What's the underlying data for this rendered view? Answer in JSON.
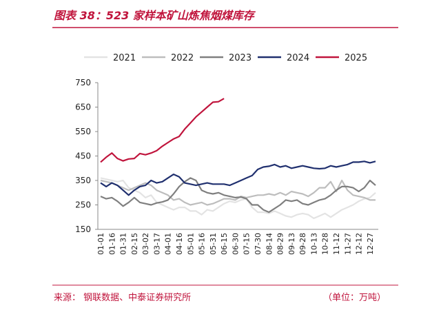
{
  "chart_data": {
    "type": "line",
    "title": "图表 38：523 家样本矿山炼焦烟煤库存",
    "source": "来源：   钢联数据、中泰证券研究所",
    "unit": "（单位：万吨）",
    "categories": [
      "01-01",
      null,
      "01-16",
      null,
      "01-31",
      null,
      "02-15",
      null,
      "03-02",
      null,
      "03-17",
      null,
      "04-01",
      null,
      "04-16",
      null,
      "05-01",
      null,
      "05-16",
      null,
      "05-31",
      null,
      "06-15",
      null,
      "06-30",
      null,
      "07-15",
      null,
      "07-30",
      null,
      "08-14",
      null,
      "08-29",
      null,
      "09-13",
      null,
      "09-28",
      null,
      "10-13",
      null,
      "10-28",
      null,
      "11-12",
      null,
      "11-27",
      null,
      "12-12",
      null,
      "12-27",
      null
    ],
    "ylim": [
      150,
      750
    ],
    "yticks": [
      150,
      250,
      350,
      450,
      550,
      650,
      750
    ],
    "legend": "top",
    "series": [
      {
        "name": "2021",
        "color": "#e3e3e3",
        "values": [
          360,
          355,
          350,
          345,
          350,
          320,
          310,
          300,
          280,
          290,
          260,
          250,
          240,
          230,
          240,
          240,
          225,
          225,
          210,
          230,
          225,
          240,
          255,
          265,
          260,
          270,
          275,
          240,
          220,
          220,
          215,
          225,
          215,
          205,
          200,
          210,
          215,
          210,
          195,
          205,
          215,
          200,
          215,
          230,
          240,
          250,
          265,
          275,
          280,
          300
        ]
      },
      {
        "name": "2022",
        "color": "#bdbdbd",
        "values": [
          350,
          345,
          340,
          330,
          320,
          310,
          320,
          330,
          340,
          330,
          310,
          300,
          290,
          270,
          275,
          260,
          250,
          255,
          260,
          250,
          255,
          265,
          275,
          275,
          270,
          285,
          280,
          285,
          290,
          290,
          295,
          290,
          300,
          290,
          305,
          300,
          295,
          285,
          300,
          320,
          320,
          345,
          305,
          350,
          310,
          290,
          285,
          280,
          270,
          270
        ]
      },
      {
        "name": "2023",
        "color": "#7f7f7f",
        "values": [
          285,
          275,
          280,
          265,
          245,
          260,
          280,
          260,
          255,
          250,
          258,
          262,
          270,
          295,
          325,
          345,
          360,
          350,
          310,
          300,
          295,
          300,
          290,
          285,
          280,
          282,
          275,
          250,
          250,
          230,
          220,
          235,
          250,
          270,
          265,
          270,
          255,
          250,
          260,
          270,
          275,
          290,
          310,
          325,
          325,
          320,
          305,
          320,
          350,
          330
        ]
      },
      {
        "name": "2024",
        "color": "#1f2f6e",
        "values": [
          340,
          325,
          340,
          330,
          310,
          290,
          310,
          325,
          330,
          350,
          340,
          345,
          360,
          375,
          365,
          340,
          335,
          330,
          335,
          340,
          335,
          335,
          335,
          330,
          340,
          350,
          360,
          370,
          395,
          405,
          408,
          415,
          405,
          410,
          400,
          405,
          410,
          405,
          400,
          398,
          400,
          410,
          405,
          410,
          415,
          425,
          425,
          428,
          422,
          428
        ]
      },
      {
        "name": "2025",
        "color": "#c0143c",
        "values": [
          425,
          445,
          462,
          440,
          430,
          438,
          440,
          460,
          455,
          462,
          472,
          490,
          505,
          520,
          530,
          560,
          585,
          610,
          630,
          650,
          670,
          672,
          685,
          null,
          null,
          null,
          null,
          null,
          null,
          null,
          null,
          null,
          null,
          null,
          null,
          null,
          null,
          null,
          null,
          null,
          null,
          null,
          null,
          null,
          null,
          null,
          null,
          null,
          null,
          null
        ]
      }
    ]
  }
}
